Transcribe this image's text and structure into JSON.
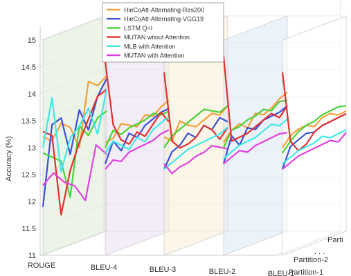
{
  "chart_data": {
    "type": "line",
    "subtype": "3d-waterfall",
    "title": "",
    "xlabel": "",
    "ylabel": "Accuracy (%)",
    "ylim": [
      11,
      15
    ],
    "yticks": [
      11,
      11.5,
      12,
      12.5,
      13,
      13.5,
      14,
      14.5,
      15
    ],
    "metrics": [
      "ROUGE",
      "BLEU-4",
      "BLEU-3",
      "BLEU-2",
      "BLEU-1"
    ],
    "depth_labels": [
      "Partition-1",
      "Partition-2",
      "Parti"
    ],
    "depth_ellipsis": ". . .",
    "legend_position": "top-center",
    "grid": true,
    "series": [
      {
        "name": "HieCoAtt-Alternating-Res200",
        "color": "#f5a03a",
        "values": {
          "ROUGE": [
            13.2,
            13.1,
            13.4,
            13.3,
            12.9,
            14.1,
            14.0,
            14.15
          ],
          "BLEU-4": [
            13.1,
            13.15,
            13.4,
            13.35,
            13.3,
            13.5,
            13.45,
            13.6,
            13.7
          ],
          "BLEU-3": [
            13.2,
            13.1,
            13.45,
            13.35,
            13.3,
            13.4,
            13.5,
            13.45,
            13.6
          ],
          "BLEU-2": [
            13.1,
            13.3,
            13.4,
            13.3,
            13.55,
            13.5,
            13.6,
            13.75,
            13.85
          ],
          "BLEU-1": [
            13.0,
            13.2,
            13.3,
            13.35,
            13.3,
            13.45,
            13.5,
            13.45,
            13.5
          ]
        }
      },
      {
        "name": "HieCoAtt-Alternating-VGG19",
        "color": "#3b4fd8",
        "values": {
          "ROUGE": [
            11.9,
            13.4,
            13.5,
            12.8,
            13.6,
            13.2,
            13.8,
            14.1
          ],
          "BLEU-4": [
            12.7,
            13.1,
            12.9,
            13.2,
            13.1,
            13.3,
            13.4,
            13.5,
            13.55
          ],
          "BLEU-3": [
            12.6,
            12.9,
            13.0,
            13.2,
            13.1,
            13.3,
            13.2,
            13.4,
            13.3
          ],
          "BLEU-2": [
            12.7,
            13.2,
            13.0,
            13.3,
            13.25,
            13.4,
            13.45,
            13.5,
            13.6
          ],
          "BLEU-1": [
            12.6,
            13.0,
            13.1,
            13.2,
            13.2,
            13.3,
            13.35,
            13.4,
            13.45
          ]
        }
      },
      {
        "name": "LSTM Q+I",
        "color": "#4cd137",
        "values": {
          "ROUGE": [
            12.9,
            12.8,
            12.7,
            12.0,
            13.3,
            13.1,
            13.4,
            13.5
          ],
          "BLEU-4": [
            13.0,
            13.3,
            13.2,
            13.3,
            13.35,
            13.4,
            13.5,
            13.45,
            13.5
          ],
          "BLEU-3": [
            13.0,
            13.2,
            13.3,
            13.4,
            13.5,
            13.6,
            13.55,
            13.5,
            13.6
          ],
          "BLEU-2": [
            13.0,
            13.3,
            13.35,
            13.45,
            13.5,
            13.6,
            13.55,
            13.7,
            13.7
          ],
          "BLEU-1": [
            12.9,
            13.1,
            13.25,
            13.35,
            13.4,
            13.5,
            13.55,
            13.6,
            13.6
          ]
        }
      },
      {
        "name": "MUTAN witout Attention",
        "color": "#e03030",
        "values": {
          "ROUGE": [
            13.3,
            13.2,
            11.7,
            12.5,
            13.0,
            13.4,
            13.8,
            13.9
          ],
          "BLEU-4": [
            14.6,
            13.4,
            13.1,
            13.0,
            13.2,
            13.1,
            13.3,
            13.5,
            13.3
          ],
          "BLEU-3": [
            14.4,
            13.1,
            12.95,
            13.0,
            13.1,
            13.3,
            13.2,
            13.0,
            13.2
          ],
          "BLEU-2": [
            14.7,
            13.1,
            13.15,
            13.2,
            13.3,
            13.4,
            13.5,
            13.4,
            13.6
          ],
          "BLEU-1": [
            14.4,
            13.1,
            12.9,
            13.0,
            13.2,
            13.3,
            13.35,
            13.4,
            13.45
          ]
        }
      },
      {
        "name": "MLB with Attention",
        "color": "#40e8e8",
        "values": {
          "ROUGE": [
            13.0,
            13.9,
            12.5,
            13.1,
            13.3,
            13.6,
            13.1,
            13.9
          ],
          "BLEU-4": [
            12.9,
            13.1,
            13.0,
            12.9,
            13.1,
            13.0,
            13.2,
            13.3,
            13.4
          ],
          "BLEU-3": [
            12.6,
            12.7,
            12.8,
            12.9,
            12.95,
            13.0,
            13.05,
            13.1,
            13.2
          ],
          "BLEU-2": [
            12.8,
            12.9,
            13.0,
            13.05,
            13.1,
            13.2,
            13.3,
            13.25,
            13.35
          ],
          "BLEU-1": [
            12.7,
            12.8,
            12.9,
            12.95,
            13.0,
            13.1,
            13.05,
            13.1,
            13.15
          ]
        }
      },
      {
        "name": "MUTAN with Attention",
        "color": "#e040e0",
        "values": {
          "ROUGE": [
            12.3,
            12.5,
            12.3,
            12.2,
            11.9,
            12.9,
            12.7
          ],
          "BLEU-4": [
            12.6,
            12.75,
            12.7,
            12.85,
            12.9,
            12.95,
            13.0,
            13.1,
            13.15
          ],
          "BLEU-3": [
            12.7,
            12.5,
            12.6,
            12.65,
            12.75,
            12.8,
            12.9,
            12.85,
            12.8
          ],
          "BLEU-2": [
            12.7,
            12.8,
            12.9,
            12.85,
            12.95,
            13.0,
            13.05,
            13.1,
            13.1
          ],
          "BLEU-1": [
            12.6,
            12.7,
            12.8,
            12.85,
            12.9,
            12.95,
            13.0,
            12.95,
            13.1
          ]
        }
      }
    ]
  }
}
